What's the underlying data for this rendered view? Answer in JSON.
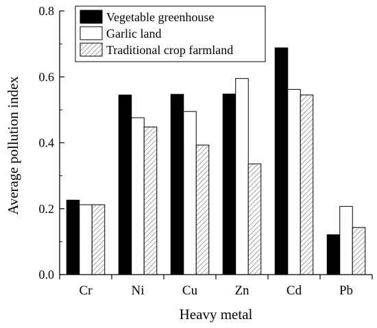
{
  "chart_data": {
    "type": "bar",
    "title": "",
    "xlabel": "Heavy metal",
    "ylabel": "Average pollution index",
    "ylim": [
      0,
      0.8
    ],
    "yticks": [
      0.0,
      0.2,
      0.4,
      0.6,
      0.8
    ],
    "ytick_labels": [
      "0.0",
      "0.2",
      "0.4",
      "0.6",
      "0.8"
    ],
    "categories": [
      "Cr",
      "Ni",
      "Cu",
      "Zn",
      "Cd",
      "Pb"
    ],
    "grid": false,
    "legend_position": "top-left",
    "series": [
      {
        "name": "Vegetable greenhouse",
        "values": [
          0.226,
          0.545,
          0.547,
          0.548,
          0.688,
          0.121
        ],
        "fill": "#000000",
        "pattern": "solid"
      },
      {
        "name": "Garlic land",
        "values": [
          0.212,
          0.476,
          0.495,
          0.595,
          0.562,
          0.207
        ],
        "fill": "#ffffff",
        "pattern": "solid"
      },
      {
        "name": "Traditional crop farmland",
        "values": [
          0.212,
          0.448,
          0.393,
          0.336,
          0.545,
          0.143
        ],
        "fill": "#d9d9d9",
        "pattern": "hatch"
      }
    ]
  }
}
